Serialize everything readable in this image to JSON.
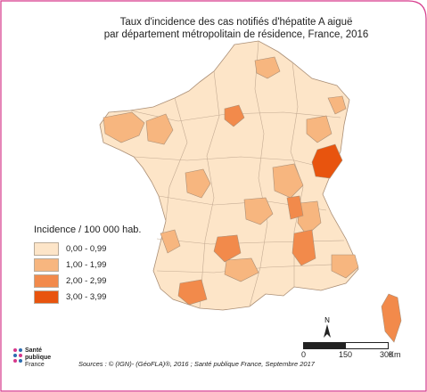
{
  "title": {
    "line1": "Taux d'incidence des cas notifiés d'hépatite A aiguë",
    "line2": "par département métropolitain de résidence, France, 2016"
  },
  "legend": {
    "title": "Incidence / 100 000 hab.",
    "classes": [
      {
        "label": "0,00 - 0,99",
        "color": "#fde5c8"
      },
      {
        "label": "1,00 - 1,99",
        "color": "#f7b67f"
      },
      {
        "label": "2,00 - 2,99",
        "color": "#f28a4b"
      },
      {
        "label": "3,00 - 3,99",
        "color": "#e8540e"
      }
    ]
  },
  "scale": {
    "north": "N",
    "ticks": [
      "0",
      "150",
      "300"
    ],
    "unit": "Km"
  },
  "logo": {
    "line1": "Santé",
    "line2": "publique",
    "line3": "France"
  },
  "sources": "Sources : © (IGN)- (GéoFLA)®, 2016 ; Santé publique France, Septembre 2017",
  "colors": {
    "border": "#ab8f76",
    "frame_accent": "#d6378a"
  }
}
